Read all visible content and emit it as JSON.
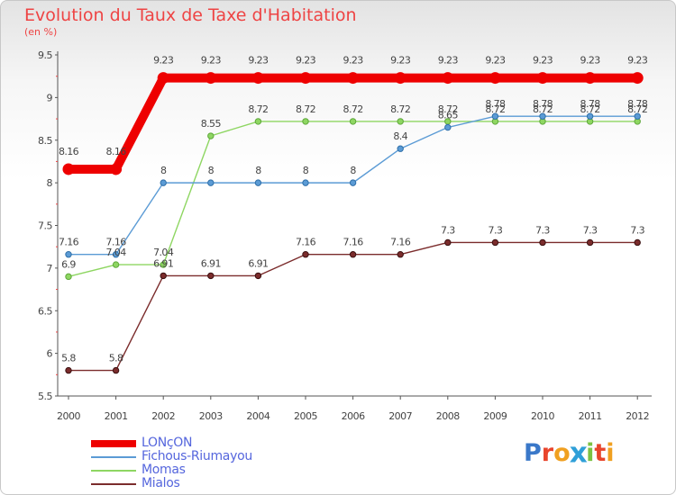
{
  "chart_data": {
    "type": "line",
    "title": "Evolution du Taux de Taxe d'Habitation",
    "unit_label": "(en %)",
    "x": [
      "2000",
      "2001",
      "2002",
      "2003",
      "2004",
      "2005",
      "2006",
      "2007",
      "2008",
      "2009",
      "2010",
      "2011",
      "2012"
    ],
    "yticks": [
      "5.5",
      "6",
      "6.5",
      "7",
      "7.5",
      "8",
      "8.5",
      "9",
      "9.5"
    ],
    "ylim": [
      5.5,
      9.5
    ],
    "grid": false,
    "legend_position": "bottom-left",
    "series": [
      {
        "name": "LONçON",
        "color": "#ee0000",
        "values": [
          8.16,
          8.16,
          9.23,
          9.23,
          9.23,
          9.23,
          9.23,
          9.23,
          9.23,
          9.23,
          9.23,
          9.23,
          9.23
        ],
        "labels": [
          "8.16",
          "8.16",
          "9.23",
          "9.23",
          "9.23",
          "9.23",
          "9.23",
          "9.23",
          "9.23",
          "9.23",
          "9.23",
          "9.23",
          "9.23"
        ]
      },
      {
        "name": "Fichous-Riumayou",
        "color": "#5b9bd5",
        "values": [
          7.16,
          7.16,
          8,
          8,
          8,
          8,
          8,
          8.4,
          8.65,
          8.78,
          8.78,
          8.78,
          8.78
        ],
        "labels": [
          "7.16",
          "7.16",
          "8",
          "8",
          "8",
          "8",
          "8",
          "8.4",
          "8.65",
          "8.78",
          "8.78",
          "8.78",
          "8.78"
        ]
      },
      {
        "name": "Momas",
        "color": "#8ed662",
        "values": [
          6.9,
          7.04,
          7.04,
          8.55,
          8.72,
          8.72,
          8.72,
          8.72,
          8.72,
          8.72,
          8.72,
          8.72,
          8.72
        ],
        "labels": [
          "6.9",
          "7.04",
          "7.04",
          "8.55",
          "8.72",
          "8.72",
          "8.72",
          "8.72",
          "8.72",
          "8.72",
          "8.72",
          "8.72",
          "8.72"
        ]
      },
      {
        "name": "Mialos",
        "color": "#7b2c2c",
        "values": [
          5.8,
          5.8,
          6.91,
          6.91,
          6.91,
          7.16,
          7.16,
          7.16,
          7.3,
          7.3,
          7.3,
          7.3,
          7.3
        ],
        "labels": [
          "5.8",
          "5.8",
          "6.91",
          "6.91",
          "6.91",
          "7.16",
          "7.16",
          "7.16",
          "7.3",
          "7.3",
          "7.3",
          "7.3",
          "7.3"
        ]
      }
    ]
  },
  "logo": {
    "text": "Proxiti",
    "letter_colors": [
      "#3a78c9",
      "#e8452c",
      "#f0a020",
      "#2f9fd8",
      "#7cc242",
      "#e8452c",
      "#f0a020"
    ]
  }
}
